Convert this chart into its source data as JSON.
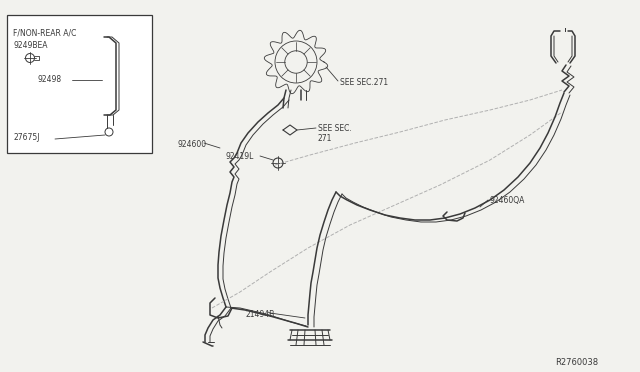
{
  "bg_color": "#f2f2ee",
  "line_color": "#3a3a3a",
  "ref_code": "R2760038",
  "labels": {
    "F_NON_REAR": "F/NON-REAR A/C",
    "part_9249BEA": "9249BEA",
    "part_92498": "92498",
    "part_27675J": "27675J",
    "part_924600": "924600",
    "part_92419L": "92419L",
    "part_92460QA": "92460QA",
    "part_21494B": "21494B",
    "see_sec_271a": "SEE SEC.271",
    "see_sec_271b": "SEE SEC.\n271"
  }
}
